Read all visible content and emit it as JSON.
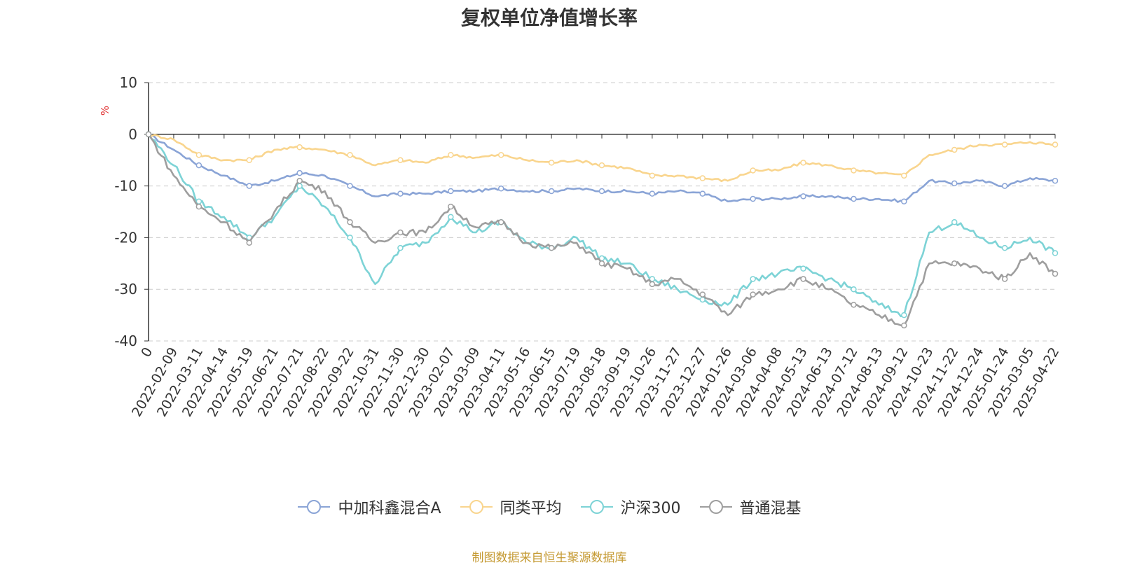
{
  "chart_data": {
    "type": "line",
    "title": "复权单位净值增长率",
    "ylabel": "%",
    "ylim": [
      -40,
      10
    ],
    "yticks": [
      10,
      0,
      -10,
      -20,
      -30,
      -40
    ],
    "x_tick_labels": [
      "0",
      "2022-02-09",
      "2022-03-11",
      "2022-04-14",
      "2022-05-19",
      "2022-06-21",
      "2022-07-21",
      "2022-08-22",
      "2022-09-22",
      "2022-10-31",
      "2022-11-30",
      "2022-12-30",
      "2023-02-07",
      "2023-03-09",
      "2023-04-11",
      "2023-05-16",
      "2023-06-15",
      "2023-07-19",
      "2023-08-18",
      "2023-09-19",
      "2023-10-26",
      "2023-11-27",
      "2023-12-27",
      "2024-01-26",
      "2024-03-06",
      "2024-04-08",
      "2024-05-13",
      "2024-06-13",
      "2024-07-12",
      "2024-08-13",
      "2024-09-12",
      "2024-10-23",
      "2024-11-22",
      "2024-12-24",
      "2025-01-24",
      "2025-03-05",
      "2025-04-22"
    ],
    "grid": "horizontal dashed",
    "legend_position": "bottom",
    "series": [
      {
        "name": "中加科鑫混合A",
        "color": "#8aa4d6",
        "values": [
          0,
          -3,
          -6,
          -8,
          -10,
          -9,
          -7.5,
          -8,
          -10,
          -12,
          -11.5,
          -11.5,
          -11,
          -11,
          -10.5,
          -11,
          -11,
          -10.5,
          -11,
          -11,
          -11.5,
          -11,
          -11.5,
          -13,
          -12.5,
          -12.5,
          -12,
          -12,
          -12.5,
          -12.5,
          -13,
          -9,
          -9.5,
          -9,
          -10,
          -8.5,
          -9
        ]
      },
      {
        "name": "同类平均",
        "color": "#f9d58e",
        "values": [
          0,
          -1,
          -4,
          -5,
          -5,
          -3,
          -2.5,
          -3,
          -4,
          -6,
          -5,
          -5.5,
          -4,
          -4.5,
          -4,
          -5,
          -5.5,
          -5,
          -6,
          -6.5,
          -8,
          -8,
          -8.5,
          -9,
          -7,
          -7,
          -5.5,
          -6,
          -7,
          -7.5,
          -8,
          -4,
          -3,
          -2,
          -2,
          -1.5,
          -2
        ]
      },
      {
        "name": "沪深300",
        "color": "#7dd3d6",
        "values": [
          0,
          -6,
          -13,
          -16,
          -20,
          -16,
          -10,
          -14,
          -20,
          -29,
          -22,
          -21,
          -16,
          -19,
          -17,
          -21,
          -22,
          -20,
          -24,
          -25,
          -28,
          -30,
          -32,
          -33,
          -28,
          -27,
          -26,
          -28,
          -30,
          -33,
          -35,
          -19,
          -17,
          -20,
          -22,
          -20,
          -23
        ]
      },
      {
        "name": "普通混基",
        "color": "#9e9e9e",
        "values": [
          0,
          -8,
          -14,
          -17,
          -21,
          -15,
          -9,
          -11,
          -17,
          -21,
          -19,
          -19,
          -14,
          -18,
          -17,
          -21,
          -22,
          -21,
          -25,
          -26,
          -29,
          -28,
          -31,
          -35,
          -31,
          -30,
          -28,
          -30,
          -33,
          -35,
          -37,
          -25,
          -25,
          -26,
          -28,
          -23,
          -27
        ]
      }
    ],
    "source_note": "制图数据来自恒生聚源数据库"
  }
}
